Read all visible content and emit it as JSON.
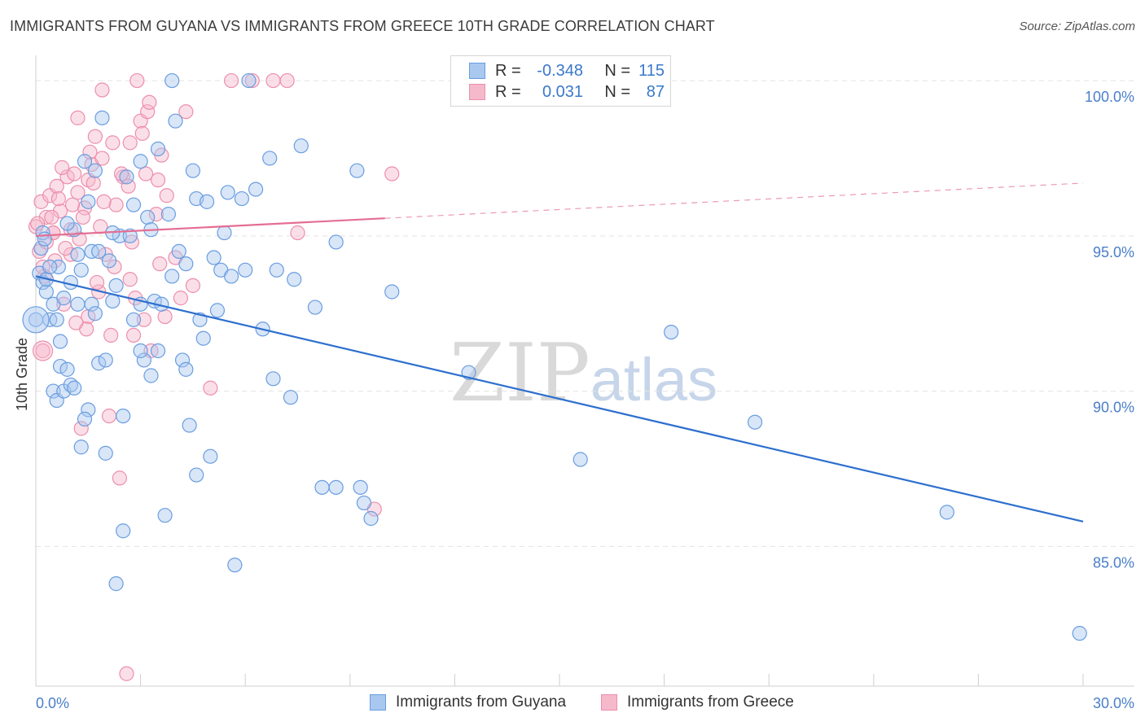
{
  "header": {
    "title": "IMMIGRANTS FROM GUYANA VS IMMIGRANTS FROM GREECE 10TH GRADE CORRELATION CHART",
    "source": "Source: ZipAtlas.com"
  },
  "watermark": {
    "zip": "ZIP",
    "atlas": "atlas"
  },
  "legend": {
    "rows": [
      {
        "r_label": "R =",
        "r_value": "-0.348",
        "n_label": "N =",
        "n_value": "115"
      },
      {
        "r_label": "R =",
        "r_value": "0.031",
        "n_label": "N =",
        "n_value": "87"
      }
    ]
  },
  "bottom_legend": {
    "guyana": "Immigrants from Guyana",
    "greece": "Immigrants from Greece"
  },
  "colors": {
    "guyana_fill": "#a9c8ef",
    "guyana_stroke": "#6a9de0",
    "guyana_line": "#2d6fce",
    "greece_fill": "#f6b9cc",
    "greece_stroke": "#ec8fac",
    "greece_line": "#e46e93",
    "grid": "#e3e3e3",
    "tick_text": "#4a7fc9"
  },
  "chart_data": {
    "type": "scatter",
    "title": "IMMIGRANTS FROM GUYANA VS IMMIGRANTS FROM GREECE 10TH GRADE CORRELATION CHART",
    "xlabel": "",
    "ylabel": "10th Grade",
    "xlim": [
      0,
      30
    ],
    "ylim": [
      80.5,
      100.5
    ],
    "x_tick_labels": [
      "0.0%",
      "30.0%"
    ],
    "y_ticks": [
      85,
      90,
      95,
      100
    ],
    "y_tick_labels": [
      "85.0%",
      "90.0%",
      "95.0%",
      "100.0%"
    ],
    "series": [
      {
        "name": "Immigrants from Guyana",
        "R": -0.348,
        "N": 115,
        "trend": {
          "x": [
            0,
            30
          ],
          "y": [
            93.7,
            85.8
          ],
          "dashed_from": null
        },
        "points": [
          [
            0.0,
            92.3
          ],
          [
            0.1,
            93.8
          ],
          [
            0.15,
            94.6
          ],
          [
            0.2,
            95.1
          ],
          [
            0.2,
            93.5
          ],
          [
            0.25,
            94.9
          ],
          [
            0.3,
            93.2
          ],
          [
            0.4,
            92.3
          ],
          [
            0.5,
            92.8
          ],
          [
            0.5,
            90.0
          ],
          [
            0.6,
            89.7
          ],
          [
            0.65,
            94.0
          ],
          [
            0.7,
            91.6
          ],
          [
            0.7,
            90.8
          ],
          [
            0.8,
            90.0
          ],
          [
            0.9,
            90.7
          ],
          [
            1.0,
            93.5
          ],
          [
            1.0,
            90.2
          ],
          [
            1.1,
            95.2
          ],
          [
            1.2,
            94.4
          ],
          [
            1.2,
            92.8
          ],
          [
            1.3,
            88.2
          ],
          [
            1.4,
            97.4
          ],
          [
            1.5,
            96.1
          ],
          [
            1.5,
            89.4
          ],
          [
            1.6,
            92.8
          ],
          [
            1.7,
            97.1
          ],
          [
            1.8,
            90.9
          ],
          [
            1.9,
            98.8
          ],
          [
            2.0,
            91.0
          ],
          [
            2.1,
            94.2
          ],
          [
            2.2,
            92.9
          ],
          [
            2.3,
            93.4
          ],
          [
            2.4,
            95.0
          ],
          [
            2.5,
            89.2
          ],
          [
            2.5,
            85.5
          ],
          [
            2.7,
            95.0
          ],
          [
            2.8,
            92.3
          ],
          [
            3.0,
            92.8
          ],
          [
            3.0,
            97.4
          ],
          [
            3.1,
            91.0
          ],
          [
            3.2,
            95.6
          ],
          [
            3.3,
            95.2
          ],
          [
            3.4,
            92.9
          ],
          [
            3.5,
            97.8
          ],
          [
            3.5,
            91.3
          ],
          [
            3.6,
            92.8
          ],
          [
            3.7,
            86.0
          ],
          [
            3.8,
            95.7
          ],
          [
            3.9,
            100.0
          ],
          [
            4.0,
            98.7
          ],
          [
            4.1,
            94.5
          ],
          [
            4.2,
            91.0
          ],
          [
            4.3,
            94.1
          ],
          [
            4.4,
            88.9
          ],
          [
            4.5,
            97.1
          ],
          [
            4.6,
            96.2
          ],
          [
            4.6,
            87.3
          ],
          [
            4.7,
            92.3
          ],
          [
            4.9,
            96.1
          ],
          [
            5.0,
            87.9
          ],
          [
            5.1,
            94.3
          ],
          [
            5.2,
            92.6
          ],
          [
            5.3,
            93.9
          ],
          [
            5.5,
            96.4
          ],
          [
            5.6,
            93.7
          ],
          [
            5.7,
            84.4
          ],
          [
            5.9,
            96.2
          ],
          [
            6.0,
            93.9
          ],
          [
            6.1,
            100.0
          ],
          [
            6.5,
            92.0
          ],
          [
            6.7,
            97.5
          ],
          [
            6.8,
            90.4
          ],
          [
            6.9,
            93.9
          ],
          [
            7.3,
            89.8
          ],
          [
            7.4,
            93.6
          ],
          [
            7.6,
            97.9
          ],
          [
            8.0,
            92.7
          ],
          [
            8.2,
            86.9
          ],
          [
            8.6,
            86.9
          ],
          [
            9.2,
            97.1
          ],
          [
            9.3,
            86.9
          ],
          [
            9.4,
            86.4
          ],
          [
            9.6,
            85.9
          ],
          [
            10.2,
            93.2
          ],
          [
            12.4,
            90.6
          ],
          [
            15.6,
            87.8
          ],
          [
            18.2,
            91.9
          ],
          [
            20.6,
            89.0
          ],
          [
            26.1,
            86.1
          ],
          [
            29.9,
            82.2
          ],
          [
            0.3,
            93.6
          ],
          [
            0.6,
            92.3
          ],
          [
            0.9,
            95.4
          ],
          [
            1.1,
            90.1
          ],
          [
            1.4,
            89.1
          ],
          [
            1.6,
            94.5
          ],
          [
            2.0,
            88.0
          ],
          [
            2.3,
            83.8
          ],
          [
            2.8,
            96.0
          ],
          [
            3.3,
            90.5
          ],
          [
            4.8,
            91.7
          ],
          [
            5.4,
            95.1
          ],
          [
            0.4,
            94.0
          ],
          [
            0.8,
            93.0
          ],
          [
            1.3,
            93.9
          ],
          [
            1.8,
            94.5
          ],
          [
            2.6,
            96.9
          ],
          [
            3.9,
            93.7
          ],
          [
            4.3,
            90.7
          ],
          [
            6.3,
            96.5
          ],
          [
            8.6,
            94.8
          ],
          [
            1.7,
            92.5
          ],
          [
            2.2,
            95.1
          ],
          [
            3.0,
            91.3
          ]
        ]
      },
      {
        "name": "Immigrants from Greece",
        "R": 0.031,
        "N": 87,
        "trend": {
          "x": [
            0,
            30
          ],
          "y": [
            95.0,
            96.7
          ],
          "dashed_from": 10
        },
        "points": [
          [
            0.0,
            95.3
          ],
          [
            0.1,
            94.5
          ],
          [
            0.15,
            96.1
          ],
          [
            0.2,
            91.3
          ],
          [
            0.25,
            93.7
          ],
          [
            0.3,
            95.6
          ],
          [
            0.4,
            96.3
          ],
          [
            0.5,
            95.1
          ],
          [
            0.55,
            94.2
          ],
          [
            0.6,
            96.6
          ],
          [
            0.7,
            95.8
          ],
          [
            0.8,
            92.8
          ],
          [
            0.9,
            96.9
          ],
          [
            1.0,
            95.2
          ],
          [
            1.0,
            94.4
          ],
          [
            1.1,
            97.0
          ],
          [
            1.2,
            96.4
          ],
          [
            1.3,
            88.8
          ],
          [
            1.4,
            95.9
          ],
          [
            1.5,
            96.8
          ],
          [
            1.5,
            92.4
          ],
          [
            1.6,
            97.3
          ],
          [
            1.7,
            98.2
          ],
          [
            1.8,
            93.2
          ],
          [
            1.9,
            97.5
          ],
          [
            2.0,
            94.4
          ],
          [
            2.1,
            89.2
          ],
          [
            2.2,
            98.0
          ],
          [
            2.3,
            96.0
          ],
          [
            2.4,
            87.2
          ],
          [
            2.5,
            96.9
          ],
          [
            2.6,
            80.9
          ],
          [
            2.7,
            93.6
          ],
          [
            2.8,
            91.8
          ],
          [
            2.9,
            100.0
          ],
          [
            3.0,
            98.7
          ],
          [
            3.1,
            92.3
          ],
          [
            3.2,
            99.0
          ],
          [
            3.3,
            91.3
          ],
          [
            3.5,
            96.8
          ],
          [
            3.6,
            97.6
          ],
          [
            3.7,
            92.4
          ],
          [
            4.0,
            94.3
          ],
          [
            4.3,
            99.0
          ],
          [
            4.5,
            93.4
          ],
          [
            5.0,
            90.1
          ],
          [
            5.6,
            100.0
          ],
          [
            6.2,
            100.0
          ],
          [
            6.8,
            100.0
          ],
          [
            7.2,
            100.0
          ],
          [
            7.5,
            95.1
          ],
          [
            9.7,
            86.2
          ],
          [
            10.2,
            97.0
          ],
          [
            1.2,
            98.8
          ],
          [
            1.9,
            99.7
          ],
          [
            2.7,
            98.0
          ],
          [
            0.3,
            94.8
          ],
          [
            0.5,
            95.1
          ],
          [
            0.75,
            97.2
          ],
          [
            1.05,
            96.0
          ],
          [
            1.25,
            94.9
          ],
          [
            1.45,
            92.0
          ],
          [
            1.65,
            96.7
          ],
          [
            1.85,
            95.3
          ],
          [
            2.15,
            91.8
          ],
          [
            2.45,
            97.0
          ],
          [
            2.75,
            94.8
          ],
          [
            3.05,
            98.3
          ],
          [
            3.25,
            99.3
          ],
          [
            3.45,
            95.7
          ],
          [
            3.75,
            96.3
          ],
          [
            4.15,
            93.0
          ],
          [
            0.05,
            95.4
          ],
          [
            0.2,
            94.0
          ],
          [
            0.45,
            95.6
          ],
          [
            0.65,
            96.2
          ],
          [
            0.85,
            94.6
          ],
          [
            1.15,
            92.2
          ],
          [
            1.35,
            95.6
          ],
          [
            1.55,
            97.7
          ],
          [
            1.75,
            93.5
          ],
          [
            1.95,
            96.1
          ],
          [
            2.25,
            94.0
          ],
          [
            2.65,
            96.6
          ],
          [
            2.85,
            93.0
          ],
          [
            3.15,
            97.0
          ],
          [
            3.55,
            94.1
          ]
        ]
      }
    ]
  }
}
